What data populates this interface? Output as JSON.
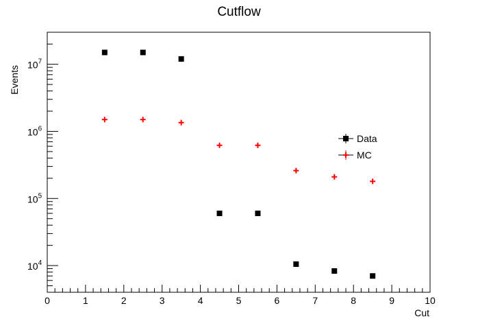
{
  "chart_data": {
    "type": "scatter",
    "title": "Cutflow",
    "xlabel": "Cut",
    "ylabel": "Events",
    "xlim": [
      0,
      10
    ],
    "ylim": [
      4000,
      30000000
    ],
    "y_scale": "log",
    "grid": false,
    "legend_position": "right",
    "x_ticks": [
      "0",
      "1",
      "2",
      "3",
      "4",
      "5",
      "6",
      "7",
      "8",
      "9",
      "10"
    ],
    "y_ticks": [
      {
        "value": 10000,
        "base": "10",
        "exp": "4"
      },
      {
        "value": 100000,
        "base": "10",
        "exp": "5"
      },
      {
        "value": 1000000,
        "base": "10",
        "exp": "6"
      },
      {
        "value": 10000000,
        "base": "10",
        "exp": "7"
      }
    ],
    "series": [
      {
        "name": "Data",
        "marker": "square",
        "color": "#000000",
        "x": [
          1.5,
          2.5,
          3.5,
          4.5,
          5.5,
          6.5,
          7.5,
          8.5
        ],
        "y": [
          15000000,
          15000000,
          12000000,
          60000,
          60000,
          10500,
          8300,
          7000
        ]
      },
      {
        "name": "MC",
        "marker": "plus",
        "color": "#ff0000",
        "x": [
          1.5,
          2.5,
          3.5,
          4.5,
          5.5,
          6.5,
          7.5,
          8.5
        ],
        "y": [
          1500000,
          1500000,
          1350000,
          620000,
          620000,
          260000,
          210000,
          180000
        ]
      }
    ]
  }
}
